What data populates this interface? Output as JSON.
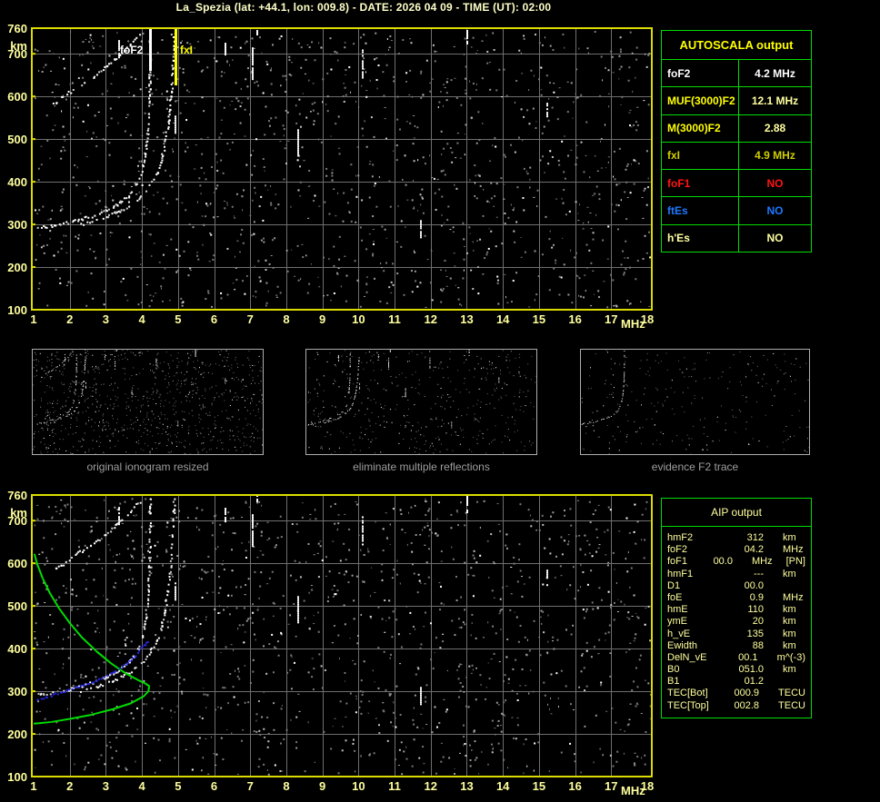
{
  "title": "La_Spezia (lat: +44.1, lon: 009.8) - DATE: 2026 04 09 - TIME (UT): 02:00",
  "axes": {
    "x_unit": "MHz",
    "y_unit": "km",
    "x_ticks": [
      1,
      2,
      3,
      4,
      5,
      6,
      7,
      8,
      9,
      10,
      11,
      12,
      13,
      14,
      15,
      16,
      17,
      18
    ],
    "y_ticks": [
      760,
      700,
      600,
      500,
      400,
      300,
      200,
      100
    ]
  },
  "markers": {
    "foF2": {
      "label": "foF2",
      "freq": 4.2,
      "color": "#FFFFFF"
    },
    "fxI": {
      "label": "fxI",
      "freq": 4.9,
      "color": "#FFFF00"
    }
  },
  "autoscala_table": {
    "title": "AUTOSCALA output",
    "rows": [
      {
        "param": "foF2",
        "value": "4.2 MHz",
        "param_color": "#FFFFFF",
        "value_color": "#FFFFFF"
      },
      {
        "param": "MUF(3000)F2",
        "value": "12.1 MHz",
        "param_color": "#FFFF00",
        "value_color": "#FFFFA0"
      },
      {
        "param": "M(3000)F2",
        "value": "2.88",
        "param_color": "#FFFF00",
        "value_color": "#FFFFA0"
      },
      {
        "param": "fxI",
        "value": "4.9 MHz",
        "param_color": "#CFCF00",
        "value_color": "#CFCF00"
      },
      {
        "param": "foF1",
        "value": "NO",
        "param_color": "#FF1414",
        "value_color": "#FF1414"
      },
      {
        "param": "ftEs",
        "value": "NO",
        "param_color": "#1E78FF",
        "value_color": "#1E78FF"
      },
      {
        "param": "h'Es",
        "value": "NO",
        "param_color": "#FFFFA0",
        "value_color": "#FFFFA0"
      }
    ]
  },
  "aip_table": {
    "title": "AIP output",
    "rows": [
      {
        "param": "hmF2",
        "value": "312",
        "unit": "km",
        "note": ""
      },
      {
        "param": "foF2",
        "value": "04.2",
        "unit": "MHz",
        "note": ""
      },
      {
        "param": "foF1",
        "value": "00.0",
        "unit": "MHz",
        "note": "[PN]"
      },
      {
        "param": "hmF1",
        "value": "---",
        "unit": "km",
        "note": ""
      },
      {
        "param": "D1",
        "value": "00.0",
        "unit": "",
        "note": ""
      },
      {
        "param": "foE",
        "value": "0.9",
        "unit": "MHz",
        "note": ""
      },
      {
        "param": "hmE",
        "value": "110",
        "unit": "km",
        "note": ""
      },
      {
        "param": "ymE",
        "value": "20",
        "unit": "km",
        "note": ""
      },
      {
        "param": "h_vE",
        "value": "135",
        "unit": "km",
        "note": ""
      },
      {
        "param": "Ewidth",
        "value": "88",
        "unit": "km",
        "note": ""
      },
      {
        "param": "DelN_vE",
        "value": "00.1",
        "unit": "m^(-3)",
        "note": ""
      },
      {
        "param": "B0",
        "value": "051.0",
        "unit": "km",
        "note": ""
      },
      {
        "param": "B1",
        "value": "01.2",
        "unit": "",
        "note": ""
      },
      {
        "param": "TEC[Bot]",
        "value": "000.9",
        "unit": "TECU",
        "note": ""
      },
      {
        "param": "TEC[Top]",
        "value": "002.8",
        "unit": "TECU",
        "note": ""
      }
    ]
  },
  "thumbnails": [
    {
      "caption": "original ionogram resized"
    },
    {
      "caption": "eliminate multiple reflections"
    },
    {
      "caption": "evidence F2 trace"
    }
  ],
  "chart_data": {
    "type": "ionogram",
    "title": "La_Spezia ionogram 2026-04-09 02:00 UT",
    "xlabel": "frequency MHz",
    "ylabel": "virtual height km",
    "x_range": [
      1,
      18
    ],
    "y_range": [
      100,
      760
    ],
    "grid": true,
    "scaled_values": {
      "foF2_MHz": 4.2,
      "fxI_MHz": 4.9,
      "hmF2_km": 312
    },
    "o_trace": [
      [
        1.05,
        293
      ],
      [
        1.4,
        297
      ],
      [
        1.8,
        303
      ],
      [
        2.2,
        311
      ],
      [
        2.6,
        321
      ],
      [
        3.0,
        334
      ],
      [
        3.3,
        348
      ],
      [
        3.6,
        366
      ],
      [
        3.8,
        388
      ],
      [
        3.95,
        415
      ],
      [
        4.05,
        450
      ],
      [
        4.12,
        495
      ],
      [
        4.17,
        550
      ],
      [
        4.2,
        620
      ],
      [
        4.21,
        720
      ],
      [
        4.21,
        758
      ]
    ],
    "x_trace": [
      [
        2.3,
        302
      ],
      [
        2.6,
        309
      ],
      [
        2.9,
        317
      ],
      [
        3.3,
        330
      ],
      [
        3.6,
        344
      ],
      [
        3.9,
        362
      ],
      [
        4.15,
        385
      ],
      [
        4.35,
        412
      ],
      [
        4.5,
        445
      ],
      [
        4.62,
        490
      ],
      [
        4.72,
        545
      ],
      [
        4.8,
        615
      ],
      [
        4.86,
        700
      ],
      [
        4.88,
        756
      ]
    ],
    "second_hop_trace": [
      [
        1.55,
        585
      ],
      [
        1.8,
        600
      ],
      [
        2.1,
        618
      ],
      [
        2.45,
        638
      ],
      [
        2.8,
        658
      ],
      [
        3.1,
        678
      ],
      [
        3.4,
        700
      ],
      [
        3.65,
        722
      ],
      [
        3.85,
        740
      ],
      [
        4.0,
        752
      ]
    ],
    "rfi_streaks": [
      [
        3.35,
        690,
        732
      ],
      [
        4.9,
        513,
        555
      ],
      [
        6.3,
        698,
        730
      ],
      [
        7.05,
        640,
        715
      ],
      [
        7.17,
        745,
        760
      ],
      [
        8.3,
        460,
        523
      ],
      [
        10.1,
        645,
        710
      ],
      [
        11.7,
        268,
        310
      ],
      [
        13.0,
        718,
        760
      ],
      [
        15.2,
        550,
        585
      ]
    ],
    "profile_green": [
      [
        1.02,
        622
      ],
      [
        1.1,
        598
      ],
      [
        1.25,
        565
      ],
      [
        1.45,
        530
      ],
      [
        1.7,
        495
      ],
      [
        2.0,
        460
      ],
      [
        2.35,
        425
      ],
      [
        2.75,
        393
      ],
      [
        3.15,
        365
      ],
      [
        3.55,
        342
      ],
      [
        3.9,
        326
      ],
      [
        4.1,
        318
      ],
      [
        4.2,
        312
      ],
      [
        4.18,
        300
      ],
      [
        4.05,
        288
      ],
      [
        3.7,
        272
      ],
      [
        3.2,
        258
      ],
      [
        2.6,
        245
      ],
      [
        2.0,
        235
      ],
      [
        1.5,
        228
      ],
      [
        1.15,
        225
      ],
      [
        1.0,
        224
      ]
    ],
    "restored_blue": [
      [
        1.02,
        279
      ],
      [
        1.3,
        287
      ],
      [
        1.6,
        295
      ],
      [
        2.0,
        306
      ],
      [
        2.4,
        317
      ],
      [
        2.8,
        330
      ],
      [
        3.1,
        342
      ],
      [
        3.4,
        357
      ],
      [
        3.65,
        372
      ],
      [
        3.85,
        390
      ],
      [
        4.0,
        405
      ],
      [
        4.1,
        415
      ],
      [
        4.18,
        422
      ]
    ],
    "noise": {
      "top_seed": 42,
      "top_count": 1300,
      "bottom_seed": 1337,
      "bottom_count": 1300
    },
    "thumbnails_render": [
      {
        "seed": 7,
        "count": 900,
        "traces": [
          "o",
          "x",
          "hop"
        ],
        "streaks": true
      },
      {
        "seed": 8,
        "count": 450,
        "traces": [
          "o",
          "x"
        ],
        "streaks": true
      },
      {
        "seed": 9,
        "count": 250,
        "traces": [
          "o"
        ],
        "streaks": false
      }
    ]
  }
}
